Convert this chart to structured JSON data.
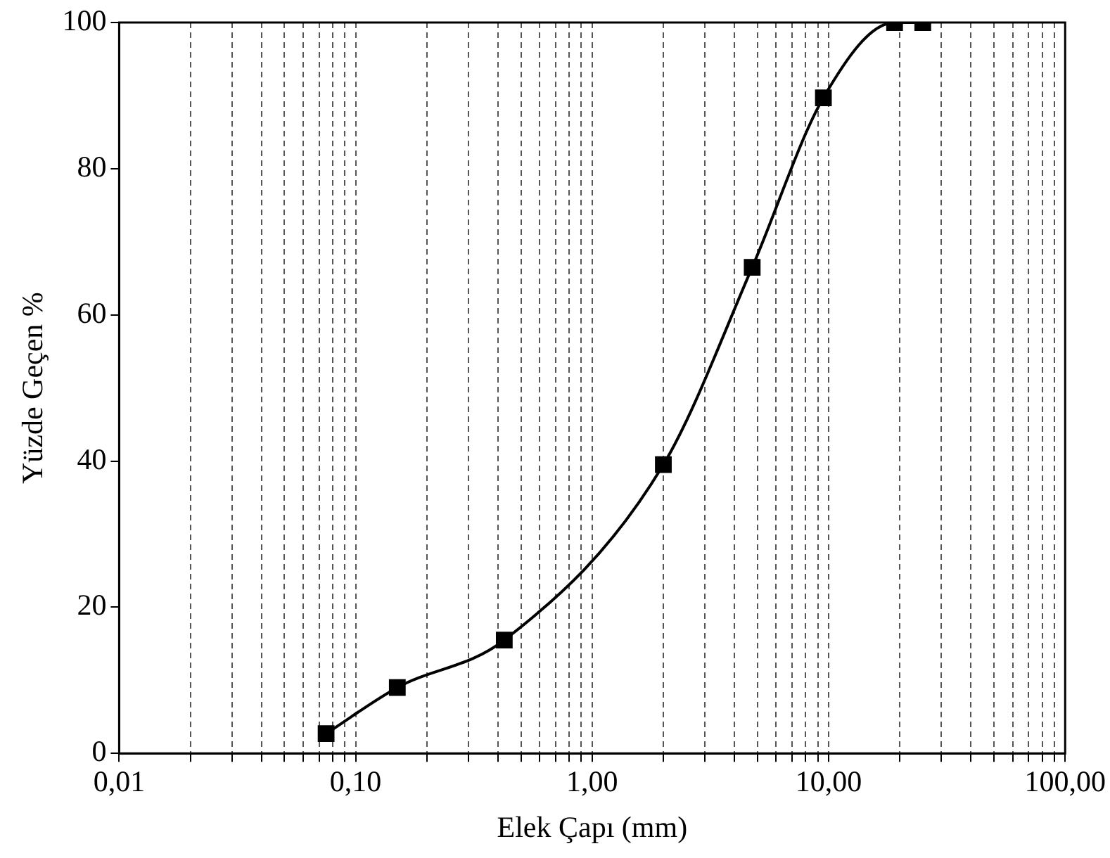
{
  "chart_data": {
    "type": "line",
    "xlabel": "Elek Çapı (mm)",
    "ylabel": "Yüzde Geçen %",
    "x": [
      0.075,
      0.15,
      0.425,
      2,
      4.75,
      9.5,
      19,
      25
    ],
    "series": [
      {
        "color": "#000000",
        "values": [
          2.7,
          9,
          15.5,
          39.5,
          66.5,
          89.7,
          100,
          100
        ]
      }
    ],
    "log": "x",
    "xlim": [
      0.01,
      100
    ],
    "xticks": [
      {
        "value": 0.01,
        "label": "0,01"
      },
      {
        "value": 0.02,
        "label": null
      },
      {
        "value": 0.03,
        "label": null
      },
      {
        "value": 0.04,
        "label": null
      },
      {
        "value": 0.05,
        "label": null
      },
      {
        "value": 0.06,
        "label": null
      },
      {
        "value": 0.07,
        "label": null
      },
      {
        "value": 0.08,
        "label": null
      },
      {
        "value": 0.09,
        "label": null
      },
      {
        "value": 0.1,
        "label": "0,10"
      },
      {
        "value": 0.2,
        "label": null
      },
      {
        "value": 0.3,
        "label": null
      },
      {
        "value": 0.4,
        "label": null
      },
      {
        "value": 0.5,
        "label": null
      },
      {
        "value": 0.6,
        "label": null
      },
      {
        "value": 0.7,
        "label": null
      },
      {
        "value": 0.8,
        "label": null
      },
      {
        "value": 0.9,
        "label": null
      },
      {
        "value": 1,
        "label": "1,00"
      },
      {
        "value": 2,
        "label": null
      },
      {
        "value": 3,
        "label": null
      },
      {
        "value": 4,
        "label": null
      },
      {
        "value": 5,
        "label": null
      },
      {
        "value": 6,
        "label": null
      },
      {
        "value": 7,
        "label": null
      },
      {
        "value": 8,
        "label": null
      },
      {
        "value": 9,
        "label": null
      },
      {
        "value": 10,
        "label": "10,00"
      },
      {
        "value": 20,
        "label": null
      },
      {
        "value": 30,
        "label": null
      },
      {
        "value": 40,
        "label": null
      },
      {
        "value": 50,
        "label": null
      },
      {
        "value": 60,
        "label": null
      },
      {
        "value": 70,
        "label": null
      },
      {
        "value": 80,
        "label": null
      },
      {
        "value": 90,
        "label": null
      },
      {
        "value": 100,
        "label": "100,00"
      }
    ],
    "ylim": [
      0,
      100
    ],
    "yticks": [
      0,
      20,
      40,
      60,
      80,
      100
    ],
    "grid": "x",
    "legend": false,
    "marker": "square",
    "line_style": "solid"
  }
}
